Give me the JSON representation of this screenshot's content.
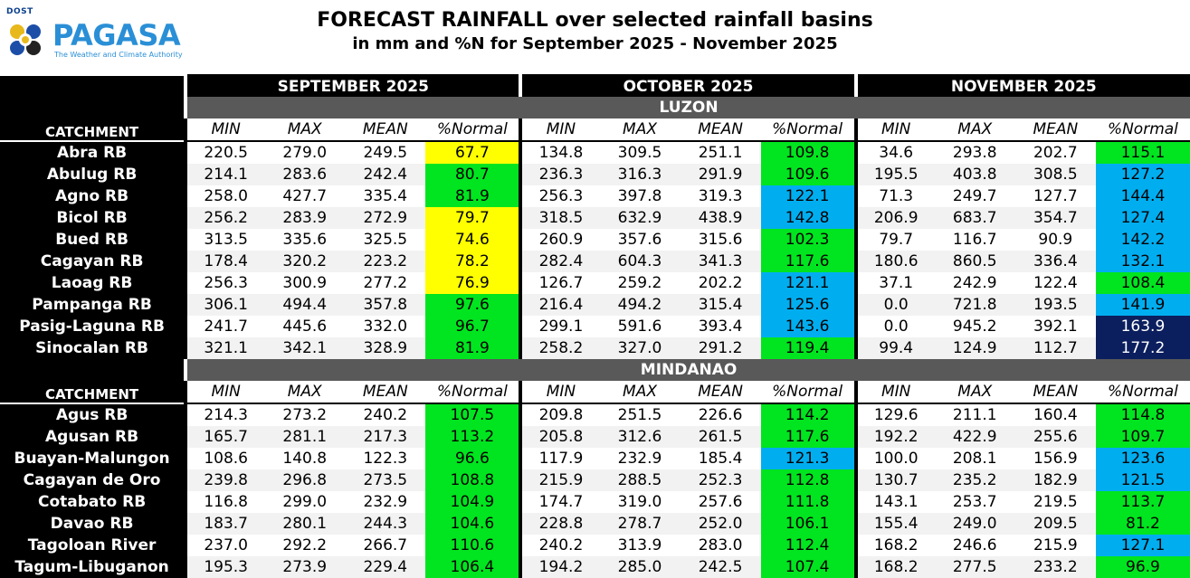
{
  "logo": {
    "agency_top": "DOST",
    "name": "PAGASA",
    "tagline": "The Weather and Climate Authority"
  },
  "title": "FORECAST RAINFALL over selected rainfall basins",
  "subtitle": "in mm and %N for September 2025 - November 2025",
  "months": [
    "SEPTEMBER 2025",
    "OCTOBER 2025",
    "NOVEMBER 2025"
  ],
  "catchment_label": "CATCHMENT",
  "columns": [
    "MIN",
    "MAX",
    "MEAN",
    "%Normal"
  ],
  "pn_colors": {
    "y": "#ffff00",
    "g": "#00e51f",
    "b": "#00aef0",
    "n": "#0b1f5e"
  },
  "regions": [
    {
      "name": "LUZON",
      "rows": [
        {
          "name": "Abra RB",
          "months": [
            {
              "min": "220.5",
              "max": "279.0",
              "mean": "249.5",
              "pn": "67.7",
              "c": "y"
            },
            {
              "min": "134.8",
              "max": "309.5",
              "mean": "251.1",
              "pn": "109.8",
              "c": "g"
            },
            {
              "min": "34.6",
              "max": "293.8",
              "mean": "202.7",
              "pn": "115.1",
              "c": "g"
            }
          ]
        },
        {
          "name": "Abulug RB",
          "months": [
            {
              "min": "214.1",
              "max": "283.6",
              "mean": "242.4",
              "pn": "80.7",
              "c": "g"
            },
            {
              "min": "236.3",
              "max": "316.3",
              "mean": "291.9",
              "pn": "109.6",
              "c": "g"
            },
            {
              "min": "195.5",
              "max": "403.8",
              "mean": "308.5",
              "pn": "127.2",
              "c": "b"
            }
          ]
        },
        {
          "name": "Agno RB",
          "months": [
            {
              "min": "258.0",
              "max": "427.7",
              "mean": "335.4",
              "pn": "81.9",
              "c": "g"
            },
            {
              "min": "256.3",
              "max": "397.8",
              "mean": "319.3",
              "pn": "122.1",
              "c": "b"
            },
            {
              "min": "71.3",
              "max": "249.7",
              "mean": "127.7",
              "pn": "144.4",
              "c": "b"
            }
          ]
        },
        {
          "name": "Bicol RB",
          "months": [
            {
              "min": "256.2",
              "max": "283.9",
              "mean": "272.9",
              "pn": "79.7",
              "c": "y"
            },
            {
              "min": "318.5",
              "max": "632.9",
              "mean": "438.9",
              "pn": "142.8",
              "c": "b"
            },
            {
              "min": "206.9",
              "max": "683.7",
              "mean": "354.7",
              "pn": "127.4",
              "c": "b"
            }
          ]
        },
        {
          "name": "Bued RB",
          "months": [
            {
              "min": "313.5",
              "max": "335.6",
              "mean": "325.5",
              "pn": "74.6",
              "c": "y"
            },
            {
              "min": "260.9",
              "max": "357.6",
              "mean": "315.6",
              "pn": "102.3",
              "c": "g"
            },
            {
              "min": "79.7",
              "max": "116.7",
              "mean": "90.9",
              "pn": "142.2",
              "c": "b"
            }
          ]
        },
        {
          "name": "Cagayan RB",
          "months": [
            {
              "min": "178.4",
              "max": "320.2",
              "mean": "223.2",
              "pn": "78.2",
              "c": "y"
            },
            {
              "min": "282.4",
              "max": "604.3",
              "mean": "341.3",
              "pn": "117.6",
              "c": "g"
            },
            {
              "min": "180.6",
              "max": "860.5",
              "mean": "336.4",
              "pn": "132.1",
              "c": "b"
            }
          ]
        },
        {
          "name": "Laoag RB",
          "months": [
            {
              "min": "256.3",
              "max": "300.9",
              "mean": "277.2",
              "pn": "76.9",
              "c": "y"
            },
            {
              "min": "126.7",
              "max": "259.2",
              "mean": "202.2",
              "pn": "121.1",
              "c": "b"
            },
            {
              "min": "37.1",
              "max": "242.9",
              "mean": "122.4",
              "pn": "108.4",
              "c": "g"
            }
          ]
        },
        {
          "name": "Pampanga RB",
          "months": [
            {
              "min": "306.1",
              "max": "494.4",
              "mean": "357.8",
              "pn": "97.6",
              "c": "g"
            },
            {
              "min": "216.4",
              "max": "494.2",
              "mean": "315.4",
              "pn": "125.6",
              "c": "b"
            },
            {
              "min": "0.0",
              "max": "721.8",
              "mean": "193.5",
              "pn": "141.9",
              "c": "b"
            }
          ]
        },
        {
          "name": "Pasig-Laguna RB",
          "months": [
            {
              "min": "241.7",
              "max": "445.6",
              "mean": "332.0",
              "pn": "96.7",
              "c": "g"
            },
            {
              "min": "299.1",
              "max": "591.6",
              "mean": "393.4",
              "pn": "143.6",
              "c": "b"
            },
            {
              "min": "0.0",
              "max": "945.2",
              "mean": "392.1",
              "pn": "163.9",
              "c": "n"
            }
          ]
        },
        {
          "name": "Sinocalan RB",
          "months": [
            {
              "min": "321.1",
              "max": "342.1",
              "mean": "328.9",
              "pn": "81.9",
              "c": "g"
            },
            {
              "min": "258.2",
              "max": "327.0",
              "mean": "291.2",
              "pn": "119.4",
              "c": "g"
            },
            {
              "min": "99.4",
              "max": "124.9",
              "mean": "112.7",
              "pn": "177.2",
              "c": "n"
            }
          ]
        }
      ]
    },
    {
      "name": "MINDANAO",
      "rows": [
        {
          "name": "Agus RB",
          "months": [
            {
              "min": "214.3",
              "max": "273.2",
              "mean": "240.2",
              "pn": "107.5",
              "c": "g"
            },
            {
              "min": "209.8",
              "max": "251.5",
              "mean": "226.6",
              "pn": "114.2",
              "c": "g"
            },
            {
              "min": "129.6",
              "max": "211.1",
              "mean": "160.4",
              "pn": "114.8",
              "c": "g"
            }
          ]
        },
        {
          "name": "Agusan RB",
          "months": [
            {
              "min": "165.7",
              "max": "281.1",
              "mean": "217.3",
              "pn": "113.2",
              "c": "g"
            },
            {
              "min": "205.8",
              "max": "312.6",
              "mean": "261.5",
              "pn": "117.6",
              "c": "g"
            },
            {
              "min": "192.2",
              "max": "422.9",
              "mean": "255.6",
              "pn": "109.7",
              "c": "g"
            }
          ]
        },
        {
          "name": "Buayan-Malungon",
          "months": [
            {
              "min": "108.6",
              "max": "140.8",
              "mean": "122.3",
              "pn": "96.6",
              "c": "g"
            },
            {
              "min": "117.9",
              "max": "232.9",
              "mean": "185.4",
              "pn": "121.3",
              "c": "b"
            },
            {
              "min": "100.0",
              "max": "208.1",
              "mean": "156.9",
              "pn": "123.6",
              "c": "b"
            }
          ]
        },
        {
          "name": "Cagayan de Oro",
          "months": [
            {
              "min": "239.8",
              "max": "296.8",
              "mean": "273.5",
              "pn": "108.8",
              "c": "g"
            },
            {
              "min": "215.9",
              "max": "288.5",
              "mean": "252.3",
              "pn": "112.8",
              "c": "g"
            },
            {
              "min": "130.7",
              "max": "235.2",
              "mean": "182.9",
              "pn": "121.5",
              "c": "b"
            }
          ]
        },
        {
          "name": "Cotabato RB",
          "months": [
            {
              "min": "116.8",
              "max": "299.0",
              "mean": "232.9",
              "pn": "104.9",
              "c": "g"
            },
            {
              "min": "174.7",
              "max": "319.0",
              "mean": "257.6",
              "pn": "111.8",
              "c": "g"
            },
            {
              "min": "143.1",
              "max": "253.7",
              "mean": "219.5",
              "pn": "113.7",
              "c": "g"
            }
          ]
        },
        {
          "name": "Davao RB",
          "months": [
            {
              "min": "183.7",
              "max": "280.1",
              "mean": "244.3",
              "pn": "104.6",
              "c": "g"
            },
            {
              "min": "228.8",
              "max": "278.7",
              "mean": "252.0",
              "pn": "106.1",
              "c": "g"
            },
            {
              "min": "155.4",
              "max": "249.0",
              "mean": "209.5",
              "pn": "81.2",
              "c": "g"
            }
          ]
        },
        {
          "name": "Tagoloan River",
          "months": [
            {
              "min": "237.0",
              "max": "292.2",
              "mean": "266.7",
              "pn": "110.6",
              "c": "g"
            },
            {
              "min": "240.2",
              "max": "313.9",
              "mean": "283.0",
              "pn": "112.4",
              "c": "g"
            },
            {
              "min": "168.2",
              "max": "246.6",
              "mean": "215.9",
              "pn": "127.1",
              "c": "b"
            }
          ]
        },
        {
          "name": "Tagum-Libuganon",
          "months": [
            {
              "min": "195.3",
              "max": "273.9",
              "mean": "229.4",
              "pn": "106.4",
              "c": "g"
            },
            {
              "min": "194.2",
              "max": "285.0",
              "mean": "242.5",
              "pn": "107.4",
              "c": "g"
            },
            {
              "min": "168.2",
              "max": "277.5",
              "mean": "233.2",
              "pn": "96.9",
              "c": "g"
            }
          ]
        }
      ]
    }
  ]
}
